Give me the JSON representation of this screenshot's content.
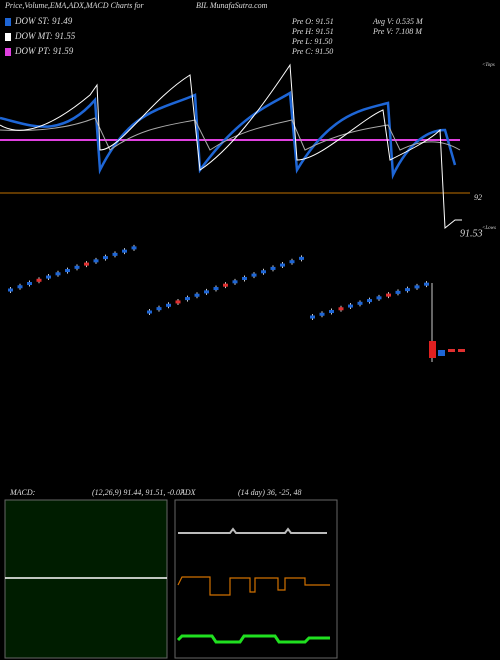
{
  "header": {
    "left": "Price,Volume,EMA,ADX,MACD Charts for",
    "center": "BIL MunafaSutra.com"
  },
  "legend": [
    {
      "label": "DOW ST: 91.49",
      "color": "#1e66d6"
    },
    {
      "label": "DOW MT: 91.55",
      "color": "#ffffff"
    },
    {
      "label": "DOW PT: 91.59",
      "color": "#e040e0"
    }
  ],
  "info": [
    "Pre  O: 91.51",
    "Pre  H: 91.51",
    "Pre  L: 91.50",
    "Pre  C: 91.50"
  ],
  "volume": [
    "Avg V: 0.535 M",
    "Pre   V: 7.108 M"
  ],
  "price_labels": {
    "tops": "<Tops",
    "level": "92",
    "last": "91.53",
    "lows": "<Lows"
  },
  "macd": {
    "name": "MACD:",
    "params": "(12,26,9) 91.44, 91.51, -0.07"
  },
  "adx": {
    "name": "ADX",
    "params": "(14 day) 36, -25, 48"
  }
}
